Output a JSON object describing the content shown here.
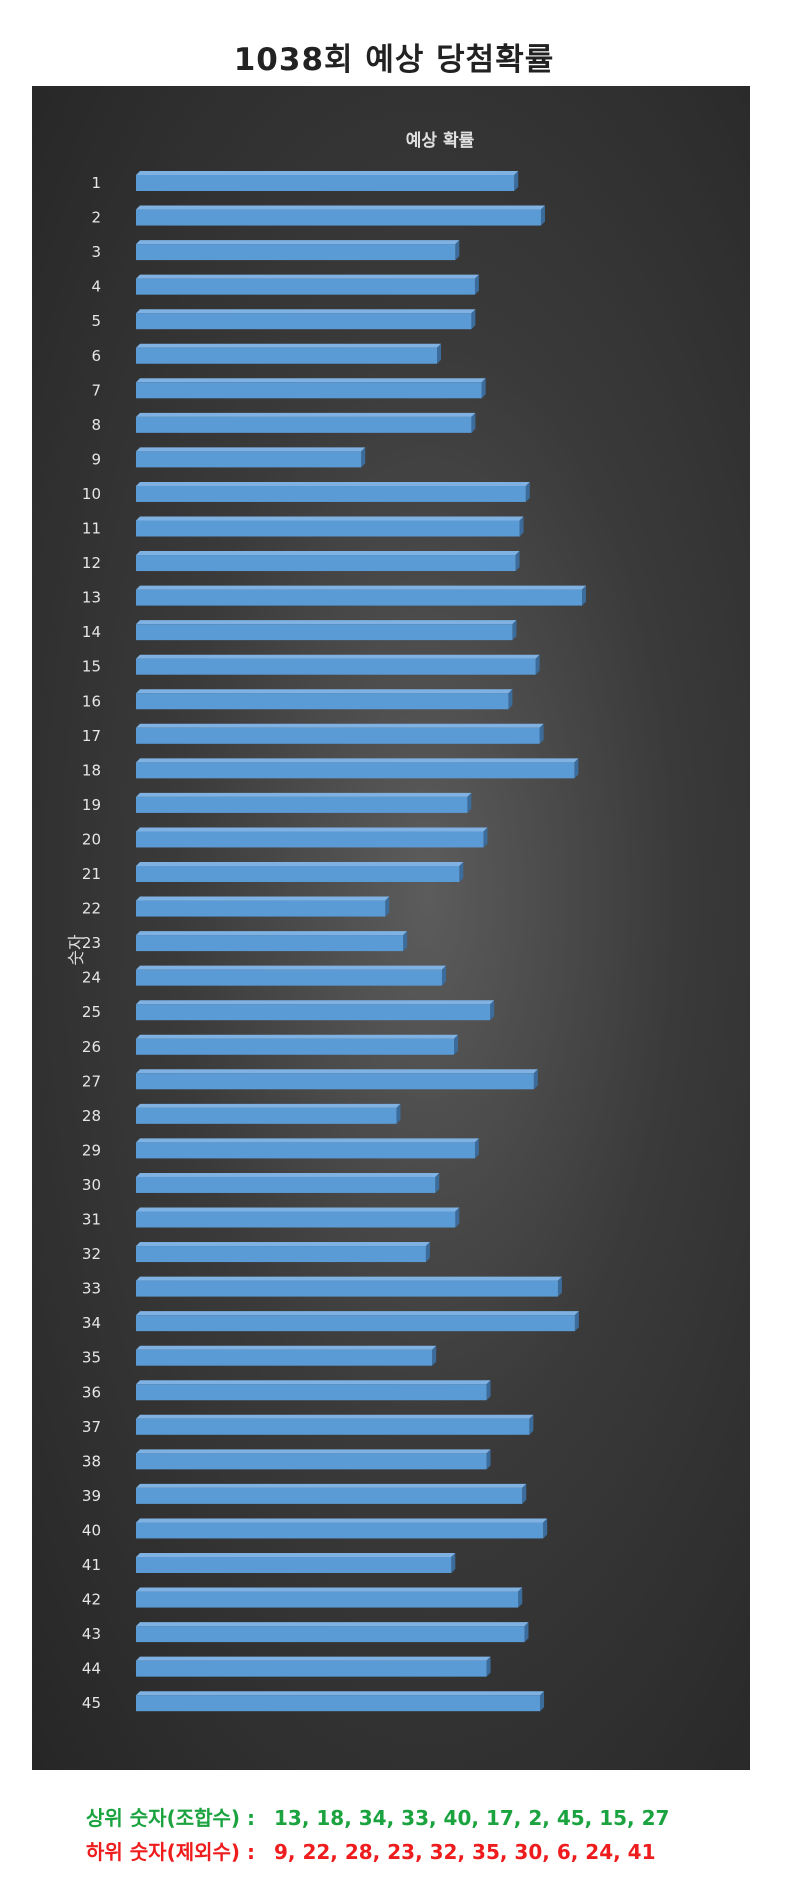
{
  "page": {
    "title": "1038회 예상 당첨확률"
  },
  "summary": {
    "top_label": "상위 숫자(조합수) :",
    "top_values": "13, 18, 34, 33, 40, 17, 2, 45, 15, 27",
    "bottom_label": "하위 숫자(제외수) :",
    "bottom_values": "9, 22, 28, 23, 32, 35, 30, 6, 24, 41"
  },
  "colors": {
    "bar_front": "#5b9bd5",
    "bar_top": "#7fb2e3",
    "bar_side": "#3b6c9c",
    "background": "#333333"
  },
  "chart_data": {
    "type": "bar",
    "orientation": "horizontal",
    "title": "예상 확률",
    "ylabel": "숫자",
    "xlabel": "",
    "grid": false,
    "legend": "none",
    "xlim": [
      0,
      100
    ],
    "categories": [
      "1",
      "2",
      "3",
      "4",
      "5",
      "6",
      "7",
      "8",
      "9",
      "10",
      "11",
      "12",
      "13",
      "14",
      "15",
      "16",
      "17",
      "18",
      "19",
      "20",
      "21",
      "22",
      "23",
      "24",
      "25",
      "26",
      "27",
      "28",
      "29",
      "30",
      "31",
      "32",
      "33",
      "34",
      "35",
      "36",
      "37",
      "38",
      "39",
      "40",
      "41",
      "42",
      "43",
      "44",
      "45"
    ],
    "values": [
      84.8,
      90.8,
      71.6,
      76.0,
      75.2,
      67.5,
      77.5,
      75.2,
      50.5,
      87.4,
      86.0,
      85.1,
      100.0,
      84.4,
      89.6,
      83.5,
      90.5,
      98.3,
      74.3,
      77.9,
      72.5,
      55.9,
      59.9,
      68.6,
      79.4,
      71.3,
      89.2,
      58.4,
      76.0,
      67.1,
      71.6,
      65.0,
      94.6,
      98.4,
      66.4,
      78.6,
      88.2,
      78.6,
      86.6,
      91.3,
      70.7,
      85.7,
      87.1,
      78.6,
      90.6
    ]
  }
}
